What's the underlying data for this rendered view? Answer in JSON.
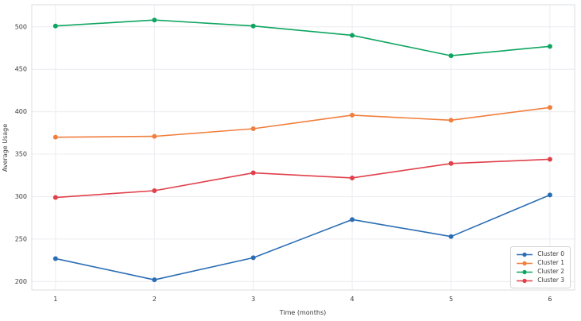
{
  "chart_data": {
    "type": "line",
    "x": [
      1,
      2,
      3,
      4,
      5,
      6
    ],
    "xlabel": "Time (months)",
    "ylabel": "Average Usage",
    "xticks": [
      1,
      2,
      3,
      4,
      5,
      6
    ],
    "yticks": [
      200,
      250,
      300,
      350,
      400,
      450,
      500
    ],
    "xlim": [
      0.76,
      6.25
    ],
    "ylim": [
      190,
      526
    ],
    "grid": true,
    "legend_position": "lower right",
    "series": [
      {
        "name": "Cluster 0",
        "color": "#2a6db4",
        "values": [
          227,
          202,
          228,
          273,
          253,
          302
        ]
      },
      {
        "name": "Cluster 1",
        "color": "#f17e3d",
        "values": [
          370,
          371,
          380,
          396,
          390,
          405
        ]
      },
      {
        "name": "Cluster 2",
        "color": "#0fa560",
        "values": [
          501,
          508,
          501,
          490,
          466,
          477
        ]
      },
      {
        "name": "Cluster 3",
        "color": "#e0404a",
        "values": [
          299,
          307,
          328,
          322,
          339,
          344
        ]
      }
    ],
    "colors": {
      "background": "#ffffff",
      "grid_color": "#ececf1",
      "spine_color": "#d9dce1",
      "text_color": "#3a3a3a"
    }
  }
}
